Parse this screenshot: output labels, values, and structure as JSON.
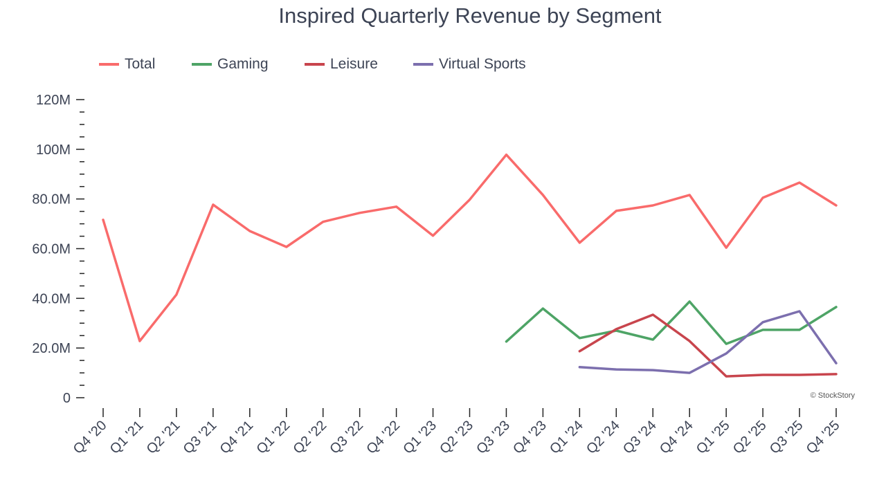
{
  "chart_data": {
    "type": "line",
    "title": "Inspired Quarterly Revenue by Segment",
    "xlabel": "",
    "ylabel": "",
    "categories": [
      "Q4 '20",
      "Q1 '21",
      "Q2 '21",
      "Q3 '21",
      "Q4 '21",
      "Q1 '22",
      "Q2 '22",
      "Q3 '22",
      "Q4 '22",
      "Q1 '23",
      "Q2 '23",
      "Q3 '23",
      "Q4 '23",
      "Q1 '24",
      "Q2 '24",
      "Q3 '24",
      "Q4 '24",
      "Q1 '25",
      "Q2 '25",
      "Q3 '25",
      "Q4 '25"
    ],
    "ylim": [
      0,
      120
    ],
    "yunit": "M",
    "yticks": [
      0,
      20,
      40,
      60,
      80,
      100,
      120
    ],
    "ytick_labels": [
      "0",
      "20.0M",
      "40.0M",
      "60.0M",
      "80.0M",
      "100M",
      "120M"
    ],
    "minor_tick_step": 5,
    "grid": false,
    "legend_position": "top-left",
    "series": [
      {
        "name": "Total",
        "color": "#f96b6b",
        "values": [
          71.6,
          22.8,
          41.5,
          77.7,
          67.1,
          60.7,
          70.8,
          74.4,
          76.9,
          65.2,
          79.7,
          97.8,
          81.6,
          62.4,
          75.2,
          77.4,
          81.6,
          60.4,
          80.5,
          86.6,
          77.4
        ]
      },
      {
        "name": "Gaming",
        "color": "#4ea466",
        "values": [
          null,
          null,
          null,
          null,
          null,
          null,
          null,
          null,
          null,
          null,
          null,
          22.6,
          35.9,
          24.0,
          27.0,
          23.4,
          38.7,
          21.7,
          27.3,
          27.3,
          36.5
        ]
      },
      {
        "name": "Leisure",
        "color": "#c8454d",
        "values": [
          null,
          null,
          null,
          null,
          null,
          null,
          null,
          null,
          null,
          null,
          null,
          null,
          null,
          18.7,
          27.6,
          33.4,
          22.8,
          8.6,
          9.2,
          9.2,
          9.5
        ]
      },
      {
        "name": "Virtual Sports",
        "color": "#7c6fae",
        "values": [
          null,
          null,
          null,
          null,
          null,
          null,
          null,
          null,
          null,
          null,
          null,
          null,
          null,
          12.3,
          11.4,
          11.1,
          10.0,
          17.8,
          30.4,
          34.8,
          13.9
        ]
      }
    ],
    "credit": "© StockStory"
  }
}
